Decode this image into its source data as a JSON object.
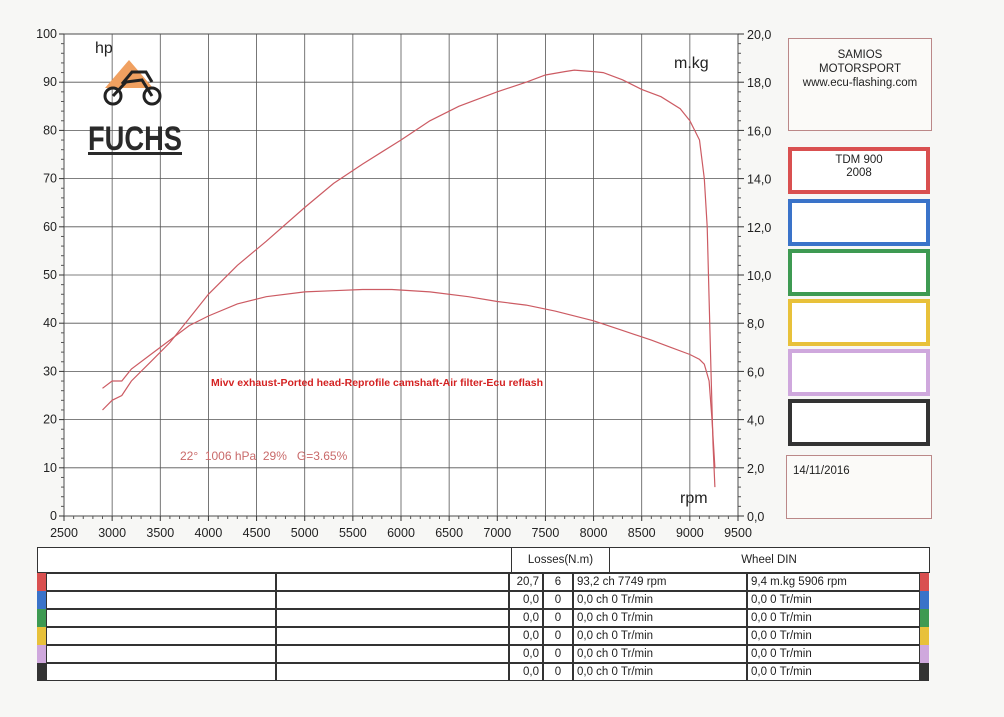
{
  "chart_data": {
    "type": "line",
    "x_axis": {
      "min": 2500,
      "max": 9500,
      "step": 500,
      "ticks": [
        "2500",
        "3000",
        "3500",
        "4000",
        "4500",
        "5000",
        "5500",
        "6000",
        "6500",
        "7000",
        "7500",
        "8000",
        "8500",
        "9000",
        "9500"
      ],
      "label": "rpm"
    },
    "y_left": {
      "min": 0,
      "max": 100,
      "step": 10,
      "ticks": [
        "0",
        "10",
        "20",
        "30",
        "40",
        "50",
        "60",
        "70",
        "80",
        "90",
        "100"
      ],
      "label": "hp"
    },
    "y_right": {
      "min": 0,
      "max": 20,
      "step": 2,
      "ticks": [
        "0,0",
        "2,0",
        "4,0",
        "6,0",
        "8,0",
        "10,0",
        "12,0",
        "14,0",
        "16,0",
        "18,0",
        "20,0"
      ],
      "label": "m.kg"
    },
    "grid": true,
    "series": [
      {
        "axis": "left",
        "color": "#cc5b63",
        "x": [
          2900,
          3000,
          3100,
          3200,
          3400,
          3600,
          3800,
          4000,
          4300,
          4600,
          5000,
          5300,
          5600,
          6000,
          6300,
          6600,
          7000,
          7300,
          7500,
          7700,
          7800,
          8000,
          8100,
          8300,
          8500,
          8700,
          8900,
          9000,
          9050,
          9100,
          9150,
          9180,
          9200,
          9220,
          9240,
          9260
        ],
        "y": [
          22,
          24,
          25,
          28,
          32,
          36,
          41,
          46,
          52,
          57,
          64,
          69,
          73,
          78,
          82,
          85,
          88,
          90,
          91.5,
          92.2,
          92.5,
          92.2,
          92,
          90.5,
          88.5,
          87,
          84.5,
          82,
          80,
          78,
          70,
          60,
          45,
          30,
          15,
          6
        ]
      },
      {
        "axis": "right",
        "color": "#cc5b63",
        "x": [
          2900,
          3000,
          3100,
          3200,
          3400,
          3600,
          3800,
          4000,
          4300,
          4600,
          5000,
          5300,
          5600,
          5906,
          6300,
          6700,
          7000,
          7300,
          7600,
          8000,
          8300,
          8600,
          8800,
          9000,
          9100,
          9150,
          9200,
          9230,
          9260
        ],
        "y": [
          5.3,
          5.6,
          5.6,
          6.1,
          6.7,
          7.3,
          7.9,
          8.3,
          8.8,
          9.1,
          9.3,
          9.35,
          9.4,
          9.4,
          9.3,
          9.1,
          8.9,
          8.75,
          8.5,
          8.1,
          7.7,
          7.3,
          7.0,
          6.7,
          6.5,
          6.3,
          5.6,
          4.0,
          2.0
        ]
      }
    ],
    "annotations": {
      "description": "Mivv exhaust-Ported head-Reprofile camshaft-Air filter-Ecu reflash",
      "conditions": "22°  1006 hPa  29%   G=3.65%"
    }
  },
  "logo": {
    "text": "FUCHS"
  },
  "info": {
    "line1": "SAMIOS",
    "line2": "MOTORSPORT",
    "line3": "www.ecu-flashing.com"
  },
  "runs": [
    {
      "color": "#d95050",
      "line1": "TDM 900",
      "line2": "2008"
    },
    {
      "color": "#3a73c9",
      "line1": "",
      "line2": ""
    },
    {
      "color": "#3e9a52",
      "line1": "",
      "line2": ""
    },
    {
      "color": "#e8c13a",
      "line1": "",
      "line2": ""
    },
    {
      "color": "#cfa8dd",
      "line1": "",
      "line2": ""
    },
    {
      "color": "#333333",
      "line1": "",
      "line2": ""
    }
  ],
  "date": "14/11/2016",
  "table": {
    "losses_header": "Losses(N.m)",
    "wheel_header": "Wheel DIN",
    "rows": [
      {
        "color": "#d95050",
        "loss1": "20,7",
        "loss2": "6",
        "power": "93,2 ch 7749 rpm",
        "torque": "9,4 m.kg 5906 rpm"
      },
      {
        "color": "#3a73c9",
        "loss1": "0,0",
        "loss2": "0",
        "power": "0,0 ch 0 Tr/min",
        "torque": "0,0  0 Tr/min"
      },
      {
        "color": "#3e9a52",
        "loss1": "0,0",
        "loss2": "0",
        "power": "0,0 ch 0 Tr/min",
        "torque": "0,0  0 Tr/min"
      },
      {
        "color": "#e8c13a",
        "loss1": "0,0",
        "loss2": "0",
        "power": "0,0 ch 0 Tr/min",
        "torque": "0,0  0 Tr/min"
      },
      {
        "color": "#cfa8dd",
        "loss1": "0,0",
        "loss2": "0",
        "power": "0,0 ch 0 Tr/min",
        "torque": "0,0  0 Tr/min"
      },
      {
        "color": "#333333",
        "loss1": "0,0",
        "loss2": "0",
        "power": "0,0 ch 0 Tr/min",
        "torque": "0,0  0 Tr/min"
      }
    ]
  }
}
